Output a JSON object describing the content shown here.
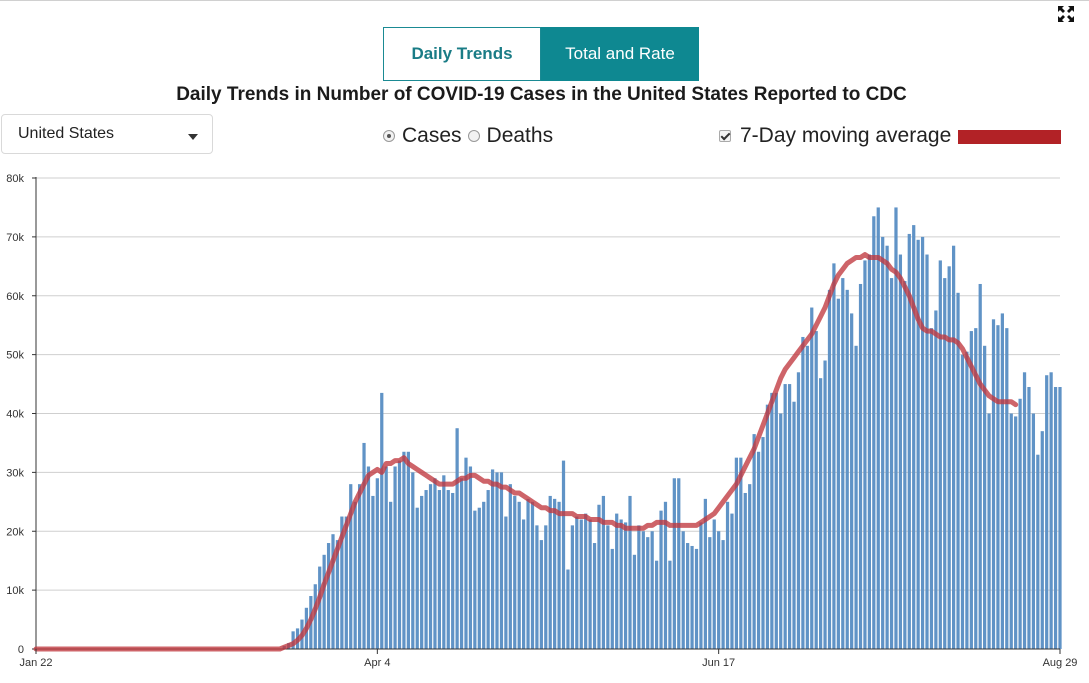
{
  "header": {
    "tabs": [
      {
        "label": "Daily Trends",
        "active": false
      },
      {
        "label": "Total and Rate",
        "active": true
      }
    ],
    "expand_icon": "expand-arrows-icon"
  },
  "title": "Daily Trends in Number of COVID-19 Cases in the United States Reported to CDC",
  "controls": {
    "location_select": {
      "value": "United States"
    },
    "metric_options": [
      {
        "label": "Cases",
        "checked": true
      },
      {
        "label": "Deaths",
        "checked": false
      }
    ],
    "moving_average": {
      "label": "7-Day moving average",
      "checked": true
    }
  },
  "colors": {
    "bar": "#6093c6",
    "line": "#c0393f",
    "accent": "#0e8891",
    "swatch": "#b22226"
  },
  "chart_data": {
    "type": "bar",
    "title": "Daily Trends in Number of COVID-19 Cases in the United States Reported to CDC",
    "xlabel": "",
    "ylabel": "",
    "ylim": [
      0,
      80000
    ],
    "y_ticks": [
      "0",
      "10k",
      "20k",
      "30k",
      "40k",
      "50k",
      "60k",
      "70k",
      "80k"
    ],
    "x_tick_labels": [
      "Jan 22",
      "Apr 4",
      "Jun 17",
      "Aug 29"
    ],
    "legend": {
      "position": "top-right",
      "entries": [
        "7-Day moving average"
      ]
    },
    "grid": true,
    "series": [
      {
        "name": "Cases",
        "type": "bar",
        "values": [
          0,
          0,
          0,
          0,
          0,
          0,
          0,
          0,
          0,
          0,
          0,
          0,
          0,
          0,
          0,
          0,
          0,
          0,
          0,
          0,
          0,
          0,
          0,
          0,
          0,
          0,
          0,
          0,
          0,
          0,
          0,
          0,
          0,
          0,
          0,
          0,
          0,
          0,
          0,
          0,
          0,
          0,
          0,
          0,
          0,
          0,
          0,
          0,
          0,
          0,
          0,
          0,
          0,
          0,
          0,
          0,
          500,
          1000,
          3000,
          3500,
          5000,
          7000,
          9000,
          11000,
          14000,
          16000,
          18000,
          19500,
          18500,
          22500,
          22500,
          28000,
          25000,
          28000,
          35000,
          31000,
          26000,
          29000,
          43500,
          31000,
          25000,
          31000,
          32000,
          33500,
          33500,
          30000,
          24000,
          26000,
          27000,
          28000,
          29000,
          27000,
          29500,
          27000,
          26500,
          37500,
          29000,
          32500,
          31000,
          23500,
          24000,
          25000,
          27000,
          30500,
          30000,
          30000,
          22500,
          28000,
          26000,
          25000,
          22000,
          25500,
          25000,
          21000,
          18500,
          21000,
          26000,
          25500,
          25000,
          32000,
          13500,
          21000,
          22500,
          22000,
          23000,
          22000,
          18000,
          24500,
          26000,
          21000,
          17000,
          23000,
          22000,
          21500,
          26000,
          16000,
          21000,
          20000,
          19000,
          20000,
          15000,
          23500,
          25000,
          15000,
          29000,
          29000,
          20000,
          18000,
          17500,
          17000,
          21500,
          25500,
          19000,
          22000,
          20000,
          18500,
          25000,
          23000,
          32500,
          32500,
          26500,
          28000,
          36500,
          33500,
          36000,
          41500,
          43500,
          43500,
          40000,
          45000,
          45000,
          42000,
          47000,
          53000,
          51500,
          58000,
          54000,
          46000,
          49000,
          61000,
          65500,
          59500,
          63000,
          61000,
          57000,
          51500,
          62000,
          66000,
          67000,
          73500,
          75000,
          70000,
          68500,
          63000,
          75000,
          67000,
          62500,
          70500,
          72000,
          69500,
          70000,
          67000,
          54500,
          57500,
          66000,
          63000,
          65000,
          68500,
          60500,
          50000,
          50500,
          54000,
          54500,
          62000,
          51500,
          40000,
          56000,
          55000,
          57000,
          54500,
          40000,
          39500,
          42500,
          47000,
          44500,
          40000,
          33000,
          37000,
          46500,
          47000,
          44500,
          44500
        ]
      },
      {
        "name": "7-Day moving average",
        "type": "line",
        "values": [
          0,
          0,
          0,
          0,
          0,
          0,
          0,
          0,
          0,
          0,
          0,
          0,
          0,
          0,
          0,
          0,
          0,
          0,
          0,
          0,
          0,
          0,
          0,
          0,
          0,
          0,
          0,
          0,
          0,
          0,
          0,
          0,
          0,
          0,
          0,
          0,
          0,
          0,
          0,
          0,
          0,
          0,
          0,
          0,
          0,
          0,
          0,
          0,
          0,
          0,
          0,
          0,
          0,
          0,
          0,
          0,
          300,
          600,
          900,
          1500,
          2300,
          3500,
          5000,
          6800,
          8800,
          11000,
          13000,
          15000,
          17000,
          19000,
          21000,
          23000,
          25000,
          26500,
          28000,
          29500,
          30000,
          30500,
          30000,
          31500,
          31500,
          32000,
          32000,
          32500,
          31500,
          31000,
          30500,
          30000,
          29500,
          29000,
          28500,
          28000,
          28000,
          28000,
          28000,
          28500,
          29000,
          29000,
          29500,
          29500,
          29000,
          28500,
          28500,
          28000,
          28000,
          27500,
          27500,
          27000,
          26500,
          26500,
          26000,
          25500,
          25000,
          24500,
          24000,
          24000,
          23500,
          23500,
          23000,
          23000,
          23000,
          23000,
          22500,
          22500,
          22500,
          22000,
          22000,
          22000,
          21500,
          21500,
          21500,
          21000,
          21000,
          20500,
          20500,
          20500,
          20500,
          20500,
          21000,
          21000,
          21500,
          21500,
          21500,
          21000,
          21000,
          21000,
          21000,
          21000,
          21000,
          21000,
          21500,
          22000,
          22500,
          23000,
          24000,
          25000,
          26000,
          27000,
          28000,
          29500,
          31000,
          32500,
          34000,
          36000,
          38000,
          40000,
          42000,
          44000,
          46000,
          47500,
          48500,
          49500,
          50500,
          51500,
          52500,
          53500,
          55000,
          56500,
          58000,
          60000,
          62000,
          63500,
          64500,
          65500,
          66000,
          66500,
          66500,
          67000,
          66500,
          66500,
          66500,
          66000,
          65500,
          64500,
          64000,
          63000,
          61500,
          60000,
          58000,
          56000,
          54500,
          54000,
          54000,
          53500,
          53000,
          53000,
          52500,
          52500,
          52000,
          51000,
          49500,
          48000,
          46500,
          45000,
          44000,
          43000,
          42500,
          42000,
          42000,
          42000,
          42000,
          41500
        ]
      }
    ]
  }
}
